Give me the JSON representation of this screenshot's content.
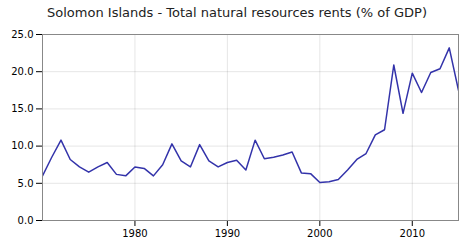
{
  "chart_data": {
    "type": "line",
    "title": "Solomon Islands - Total natural resources rents (% of GDP)",
    "x": [
      1970,
      1971,
      1972,
      1973,
      1974,
      1975,
      1976,
      1977,
      1978,
      1979,
      1980,
      1981,
      1982,
      1983,
      1984,
      1985,
      1986,
      1987,
      1988,
      1989,
      1990,
      1991,
      1992,
      1993,
      1994,
      1995,
      1996,
      1997,
      1998,
      1999,
      2000,
      2001,
      2002,
      2003,
      2004,
      2005,
      2006,
      2007,
      2008,
      2009,
      2010,
      2011,
      2012,
      2013,
      2014,
      2015
    ],
    "values": [
      6.0,
      8.5,
      10.8,
      8.2,
      7.2,
      6.5,
      7.2,
      7.8,
      6.2,
      6.0,
      7.2,
      7.0,
      6.0,
      7.5,
      10.3,
      8.0,
      7.2,
      10.2,
      8.0,
      7.2,
      7.8,
      8.1,
      6.8,
      10.8,
      8.3,
      8.5,
      8.8,
      9.2,
      6.4,
      6.3,
      5.1,
      5.2,
      5.5,
      6.8,
      8.2,
      9.0,
      11.5,
      12.2,
      20.9,
      14.4,
      19.8,
      17.2,
      19.9,
      20.4,
      23.2,
      17.5
    ],
    "color": "#3333aa",
    "xlim": [
      1970,
      2015
    ],
    "xticks": [
      1980,
      1990,
      2000,
      2010
    ],
    "ylim": [
      0.0,
      25.0
    ],
    "yticks": [
      {
        "value": 0,
        "label": "0.0"
      },
      {
        "value": 5,
        "label": "5.0"
      },
      {
        "value": 10,
        "label": "10.0"
      },
      {
        "value": 15,
        "label": "15.0"
      },
      {
        "value": 20,
        "label": "20.0"
      },
      {
        "value": 25,
        "label": "25.0"
      }
    ],
    "grid": true
  }
}
